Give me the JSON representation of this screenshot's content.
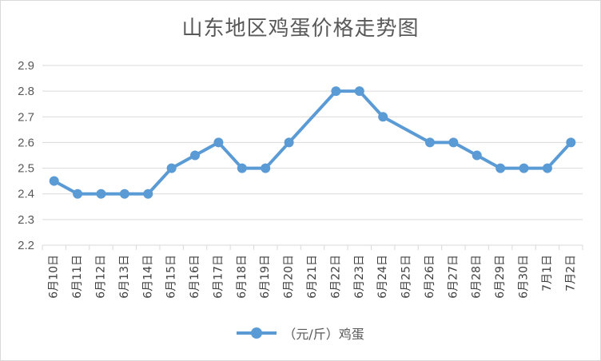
{
  "chart_data": {
    "type": "line",
    "title": "山东地区鸡蛋价格走势图",
    "categories": [
      "6月10日",
      "6月11日",
      "6月12日",
      "6月13日",
      "6月14日",
      "6月15日",
      "6月16日",
      "6月17日",
      "6月18日",
      "6月19日",
      "6月20日",
      "6月21日",
      "6月22日",
      "6月23日",
      "6月24日",
      "6月25日",
      "6月26日",
      "6月27日",
      "6月28日",
      "6月29日",
      "6月30日",
      "7月1日",
      "7月2日"
    ],
    "series": [
      {
        "name": "（元/斤）鸡蛋",
        "color": "#5b9bd5",
        "values": [
          2.45,
          2.4,
          2.4,
          2.4,
          2.4,
          2.5,
          2.55,
          2.6,
          2.5,
          2.5,
          2.6,
          null,
          2.8,
          2.8,
          2.7,
          null,
          2.6,
          2.6,
          2.55,
          2.5,
          2.5,
          2.5,
          2.6
        ]
      }
    ],
    "ylim": [
      2.2,
      2.9
    ],
    "yticks": [
      2.2,
      2.3,
      2.4,
      2.5,
      2.6,
      2.7,
      2.8,
      2.9
    ],
    "grid": true,
    "legend": "bottom-center",
    "connect_gaps": true
  }
}
